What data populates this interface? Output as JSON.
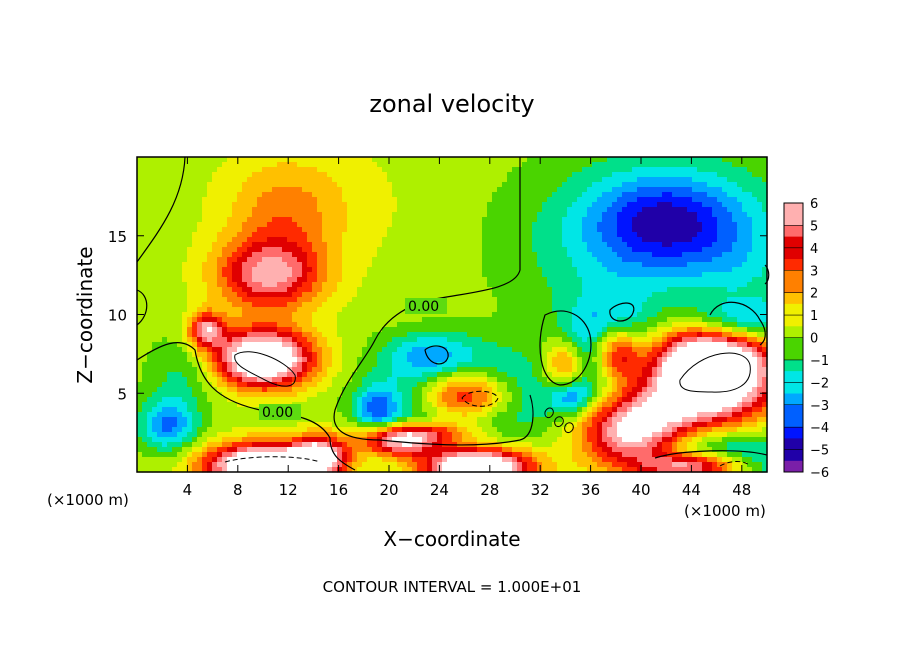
{
  "chart_data": {
    "type": "heatmap",
    "title": "zonal velocity",
    "xlabel": "X−coordinate",
    "ylabel": "Z−coordinate",
    "x_unit_left": "(×1000 m)",
    "x_unit_right": "(×1000 m)",
    "footer": "CONTOUR INTERVAL = 1.000E+01",
    "xlim": [
      0,
      50
    ],
    "ylim": [
      0,
      20
    ],
    "x_ticks": [
      "4",
      "8",
      "12",
      "16",
      "20",
      "24",
      "28",
      "32",
      "36",
      "40",
      "44",
      "48"
    ],
    "y_ticks": [
      "5",
      "10",
      "15"
    ],
    "colorbar": {
      "ticks": [
        "6",
        "5",
        "4",
        "3",
        "2",
        "1",
        "0",
        "−1",
        "−2",
        "−3",
        "−4",
        "−5",
        "−6"
      ],
      "range": [
        -6,
        6
      ],
      "colors": [
        "#7a1fa8",
        "#2000a8",
        "#0014ff",
        "#0060ff",
        "#00a8ff",
        "#00e6e6",
        "#00e08a",
        "#4ad400",
        "#aef000",
        "#f0f000",
        "#ffc000",
        "#ff8000",
        "#ff2a00",
        "#e00000",
        "#ff6b6b",
        "#ffb0b0",
        "#ffffff"
      ]
    },
    "contour_label": "0.00",
    "anomalies": [
      {
        "x": 10.5,
        "z": 12.5,
        "amp": 5.0,
        "sx": 3.0,
        "sz": 1.6
      },
      {
        "x": 11.5,
        "z": 16.5,
        "amp": 1.6,
        "sx": 3.0,
        "sz": 2.2
      },
      {
        "x": 10.0,
        "z": 7.2,
        "amp": 8.5,
        "sx": 2.8,
        "sz": 1.3
      },
      {
        "x": 5.5,
        "z": 9.0,
        "amp": 5.0,
        "sx": 1.0,
        "sz": 0.8
      },
      {
        "x": 2.5,
        "z": 3.0,
        "amp": -3.5,
        "sx": 1.6,
        "sz": 1.2
      },
      {
        "x": 4.0,
        "z": 6.5,
        "amp": -1.5,
        "sx": 2.0,
        "sz": 1.5
      },
      {
        "x": 10.0,
        "z": 0.4,
        "amp": 9.0,
        "sx": 3.2,
        "sz": 1.0
      },
      {
        "x": 14.5,
        "z": 1.0,
        "amp": 6.0,
        "sx": 1.5,
        "sz": 0.9
      },
      {
        "x": 21.0,
        "z": 1.8,
        "amp": 5.0,
        "sx": 2.2,
        "sz": 0.6
      },
      {
        "x": 27.0,
        "z": 0.3,
        "amp": 9.0,
        "sx": 3.0,
        "sz": 0.9
      },
      {
        "x": 19.0,
        "z": 4.0,
        "amp": -3.0,
        "sx": 1.2,
        "sz": 1.0
      },
      {
        "x": 26.0,
        "z": 4.8,
        "amp": -7.0,
        "sx": 4.0,
        "sz": 1.8
      },
      {
        "x": 26.0,
        "z": 4.8,
        "amp": 10.0,
        "sx": 2.8,
        "sz": 1.3
      },
      {
        "x": 23.0,
        "z": 7.5,
        "amp": -2.0,
        "sx": 2.5,
        "sz": 1.0
      },
      {
        "x": 22.5,
        "z": 2.5,
        "amp": 4.0,
        "sx": 3.0,
        "sz": 0.5
      },
      {
        "x": 34.0,
        "z": 6.8,
        "amp": 4.0,
        "sx": 1.2,
        "sz": 1.2
      },
      {
        "x": 34.5,
        "z": 4.7,
        "amp": -3.0,
        "sx": 1.2,
        "sz": 0.8
      },
      {
        "x": 37.5,
        "z": 7.5,
        "amp": -6.0,
        "sx": 2.4,
        "sz": 2.0
      },
      {
        "x": 38.0,
        "z": 7.5,
        "amp": 8.0,
        "sx": 1.5,
        "sz": 1.3
      },
      {
        "x": 39.5,
        "z": 2.5,
        "amp": 7.0,
        "sx": 3.0,
        "sz": 2.0
      },
      {
        "x": 45.5,
        "z": 6.5,
        "amp": 11.0,
        "sx": 3.5,
        "sz": 2.2
      },
      {
        "x": 47.5,
        "z": 9.5,
        "amp": -4.0,
        "sx": 3.5,
        "sz": 1.0
      },
      {
        "x": 45.0,
        "z": 0.5,
        "amp": -5.5,
        "sx": 4.5,
        "sz": 1.3
      },
      {
        "x": 44.5,
        "z": 0.3,
        "amp": 9.0,
        "sx": 3.0,
        "sz": 0.7
      },
      {
        "x": 42.0,
        "z": 16.0,
        "amp": -3.2,
        "sx": 4.0,
        "sz": 2.0
      },
      {
        "x": 38.0,
        "z": 14.5,
        "amp": -1.5,
        "sx": 6.0,
        "sz": 3.5
      },
      {
        "x": 48.0,
        "z": 13.0,
        "amp": -1.0,
        "sx": 3.0,
        "sz": 3.0
      }
    ]
  }
}
